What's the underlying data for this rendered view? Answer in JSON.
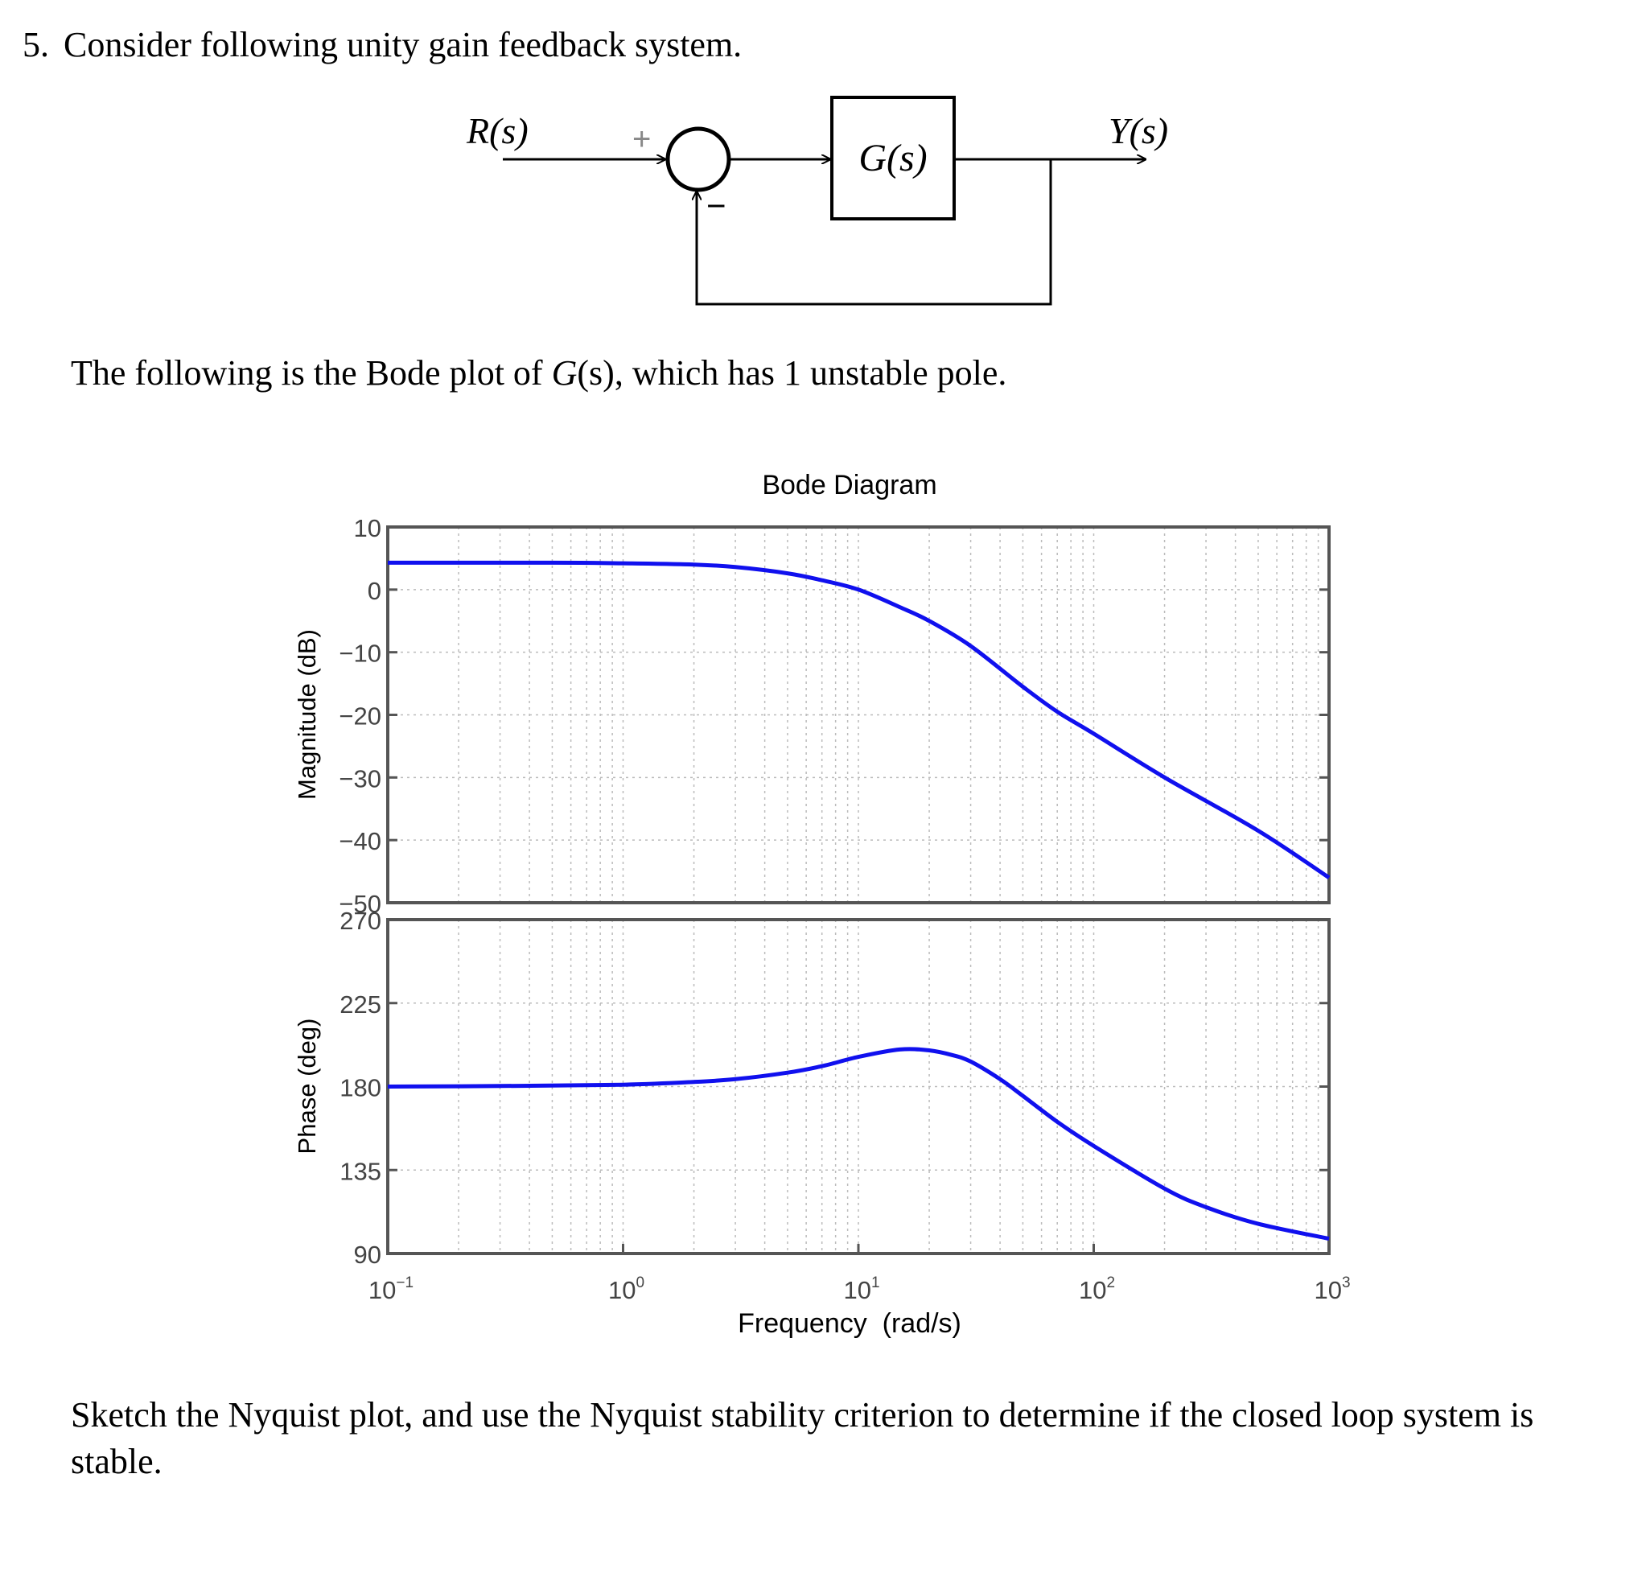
{
  "question": {
    "number": "5.",
    "prompt": "Consider following unity gain feedback system.",
    "intro_before": "The following is the Bode plot of ",
    "intro_func": "G",
    "intro_arg": "(s)",
    "intro_after": ", which has 1 unstable pole.",
    "closing": "Sketch the Nyquist plot, and use the Nyquist stability criterion to determine if the closed loop system is stable."
  },
  "block_diagram": {
    "input": "R(s)",
    "output": "Y(s)",
    "plant": "G(s)",
    "plus_sign": "+",
    "minus_sign": "−"
  },
  "chart_data": [
    {
      "type": "line",
      "title": "Bode Diagram",
      "xlabel": "Frequency  (rad/s)",
      "ylabel": "Magnitude (dB)",
      "xscale": "log",
      "xlim": [
        0.1,
        1000
      ],
      "ylim": [
        -50,
        10
      ],
      "yticks": [
        "10",
        "0",
        "−10",
        "−20",
        "−30",
        "−40",
        "−50"
      ],
      "grid": true,
      "color": "#1010ee",
      "series": [
        {
          "x": [
            0.1,
            0.5,
            1,
            2,
            3,
            5,
            7,
            10,
            15,
            20,
            30,
            50,
            70,
            100,
            200,
            500,
            1000
          ],
          "values": [
            4.3,
            4.3,
            4.2,
            4.0,
            3.6,
            2.6,
            1.5,
            0,
            -2.8,
            -5,
            -9,
            -15.5,
            -19.5,
            -23,
            -30,
            -38.5,
            -46
          ]
        }
      ]
    },
    {
      "type": "line",
      "xlabel": "Frequency  (rad/s)",
      "ylabel": "Phase (deg)",
      "xscale": "log",
      "xlim": [
        0.1,
        1000
      ],
      "ylim": [
        90,
        270
      ],
      "yticks": [
        "270",
        "225",
        "180",
        "135",
        "90"
      ],
      "xticks": [
        {
          "base": "10",
          "exp": "−1"
        },
        {
          "base": "10",
          "exp": "0"
        },
        {
          "base": "10",
          "exp": "1"
        },
        {
          "base": "10",
          "exp": "2"
        },
        {
          "base": "10",
          "exp": "3"
        }
      ],
      "grid": true,
      "color": "#1010ee",
      "series": [
        {
          "x": [
            0.1,
            0.3,
            1,
            2,
            3,
            5,
            7,
            10,
            15,
            20,
            25,
            30,
            40,
            50,
            70,
            100,
            200,
            300,
            500,
            1000
          ],
          "values": [
            180,
            180.3,
            181,
            182.5,
            184,
            187.5,
            191,
            196,
            200,
            199.5,
            197,
            193.5,
            184,
            175,
            161,
            148,
            125,
            115,
            106,
            98
          ]
        }
      ]
    }
  ]
}
